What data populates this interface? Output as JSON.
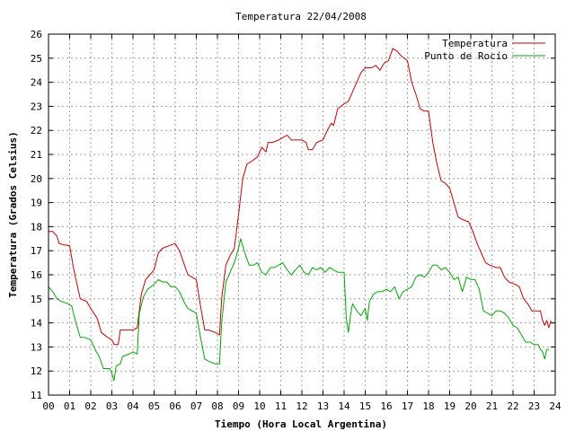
{
  "chart_data": {
    "type": "line",
    "title": "Temperatura 22/04/2008",
    "xlabel": "Tiempo (Hora Local Argentina)",
    "ylabel": "Temperatura (Grados Celsius)",
    "xlim": [
      0,
      24
    ],
    "ylim": [
      11,
      26
    ],
    "x_ticks": [
      0,
      1,
      2,
      3,
      4,
      5,
      6,
      7,
      8,
      9,
      10,
      11,
      12,
      13,
      14,
      15,
      16,
      17,
      18,
      19,
      20,
      21,
      22,
      23,
      24
    ],
    "x_tick_labels": [
      "00",
      "01",
      "02",
      "03",
      "04",
      "05",
      "06",
      "07",
      "08",
      "09",
      "10",
      "11",
      "12",
      "13",
      "14",
      "15",
      "16",
      "17",
      "18",
      "19",
      "20",
      "21",
      "22",
      "23",
      "24"
    ],
    "y_ticks": [
      11,
      12,
      13,
      14,
      15,
      16,
      17,
      18,
      19,
      20,
      21,
      22,
      23,
      24,
      25,
      26
    ],
    "grid": true,
    "legend_position": "top-right",
    "series": [
      {
        "name": "Temperatura",
        "color": "#cc0000",
        "points": [
          [
            0.0,
            17.8
          ],
          [
            0.2,
            17.8
          ],
          [
            0.4,
            17.6
          ],
          [
            0.5,
            17.3
          ],
          [
            0.7,
            17.25
          ],
          [
            1.0,
            17.2
          ],
          [
            1.2,
            16.2
          ],
          [
            1.5,
            15.0
          ],
          [
            1.8,
            14.9
          ],
          [
            2.0,
            14.6
          ],
          [
            2.3,
            14.2
          ],
          [
            2.5,
            13.6
          ],
          [
            2.8,
            13.4
          ],
          [
            3.0,
            13.3
          ],
          [
            3.1,
            13.1
          ],
          [
            3.3,
            13.1
          ],
          [
            3.4,
            13.7
          ],
          [
            3.7,
            13.7
          ],
          [
            4.0,
            13.7
          ],
          [
            4.2,
            13.8
          ],
          [
            4.4,
            15.2
          ],
          [
            4.6,
            15.8
          ],
          [
            4.8,
            16.0
          ],
          [
            5.0,
            16.2
          ],
          [
            5.2,
            16.9
          ],
          [
            5.4,
            17.1
          ],
          [
            5.7,
            17.2
          ],
          [
            6.0,
            17.3
          ],
          [
            6.2,
            17.0
          ],
          [
            6.4,
            16.5
          ],
          [
            6.6,
            16.0
          ],
          [
            6.8,
            15.9
          ],
          [
            7.0,
            15.8
          ],
          [
            7.2,
            14.7
          ],
          [
            7.4,
            13.7
          ],
          [
            7.6,
            13.7
          ],
          [
            7.9,
            13.6
          ],
          [
            8.1,
            13.5
          ],
          [
            8.2,
            15.0
          ],
          [
            8.4,
            16.4
          ],
          [
            8.6,
            16.8
          ],
          [
            8.8,
            17.1
          ],
          [
            9.0,
            18.5
          ],
          [
            9.2,
            20.0
          ],
          [
            9.4,
            20.6
          ],
          [
            9.6,
            20.7
          ],
          [
            9.9,
            20.9
          ],
          [
            10.1,
            21.3
          ],
          [
            10.3,
            21.1
          ],
          [
            10.4,
            21.5
          ],
          [
            10.6,
            21.5
          ],
          [
            10.9,
            21.6
          ],
          [
            11.1,
            21.7
          ],
          [
            11.3,
            21.8
          ],
          [
            11.5,
            21.6
          ],
          [
            11.8,
            21.6
          ],
          [
            12.0,
            21.6
          ],
          [
            12.2,
            21.5
          ],
          [
            12.3,
            21.2
          ],
          [
            12.5,
            21.2
          ],
          [
            12.7,
            21.5
          ],
          [
            13.0,
            21.6
          ],
          [
            13.2,
            22.0
          ],
          [
            13.4,
            22.3
          ],
          [
            13.5,
            22.2
          ],
          [
            13.7,
            22.9
          ],
          [
            14.0,
            23.1
          ],
          [
            14.2,
            23.2
          ],
          [
            14.4,
            23.6
          ],
          [
            14.6,
            24.0
          ],
          [
            14.8,
            24.4
          ],
          [
            15.0,
            24.6
          ],
          [
            15.3,
            24.6
          ],
          [
            15.5,
            24.7
          ],
          [
            15.7,
            24.5
          ],
          [
            15.9,
            24.8
          ],
          [
            16.1,
            24.9
          ],
          [
            16.3,
            25.4
          ],
          [
            16.5,
            25.3
          ],
          [
            16.7,
            25.1
          ],
          [
            17.0,
            24.9
          ],
          [
            17.2,
            24.0
          ],
          [
            17.4,
            23.5
          ],
          [
            17.6,
            22.9
          ],
          [
            17.8,
            22.8
          ],
          [
            18.0,
            22.8
          ],
          [
            18.2,
            21.5
          ],
          [
            18.4,
            20.6
          ],
          [
            18.6,
            19.9
          ],
          [
            18.8,
            19.8
          ],
          [
            19.0,
            19.6
          ],
          [
            19.2,
            19.0
          ],
          [
            19.4,
            18.4
          ],
          [
            19.6,
            18.3
          ],
          [
            19.9,
            18.2
          ],
          [
            20.1,
            17.8
          ],
          [
            20.3,
            17.3
          ],
          [
            20.5,
            16.9
          ],
          [
            20.7,
            16.5
          ],
          [
            20.9,
            16.4
          ],
          [
            21.2,
            16.3
          ],
          [
            21.4,
            16.3
          ],
          [
            21.6,
            15.9
          ],
          [
            21.8,
            15.7
          ],
          [
            22.1,
            15.6
          ],
          [
            22.3,
            15.5
          ],
          [
            22.5,
            15.0
          ],
          [
            22.7,
            14.8
          ],
          [
            22.9,
            14.5
          ],
          [
            23.1,
            14.5
          ],
          [
            23.3,
            14.5
          ],
          [
            23.4,
            14.1
          ],
          [
            23.5,
            13.9
          ],
          [
            23.6,
            14.1
          ],
          [
            23.7,
            13.8
          ],
          [
            23.8,
            14.1
          ]
        ]
      },
      {
        "name": "Punto de Rocío",
        "color": "#00aa00",
        "points": [
          [
            0.0,
            15.5
          ],
          [
            0.2,
            15.3
          ],
          [
            0.4,
            15.0
          ],
          [
            0.6,
            14.9
          ],
          [
            0.9,
            14.8
          ],
          [
            1.1,
            14.7
          ],
          [
            1.3,
            14.0
          ],
          [
            1.5,
            13.4
          ],
          [
            1.7,
            13.4
          ],
          [
            2.0,
            13.3
          ],
          [
            2.2,
            12.9
          ],
          [
            2.4,
            12.6
          ],
          [
            2.6,
            12.1
          ],
          [
            2.9,
            12.1
          ],
          [
            3.0,
            11.9
          ],
          [
            3.1,
            11.6
          ],
          [
            3.2,
            12.2
          ],
          [
            3.4,
            12.3
          ],
          [
            3.5,
            12.6
          ],
          [
            3.8,
            12.7
          ],
          [
            4.0,
            12.8
          ],
          [
            4.2,
            12.7
          ],
          [
            4.3,
            14.4
          ],
          [
            4.5,
            15.1
          ],
          [
            4.7,
            15.4
          ],
          [
            5.0,
            15.6
          ],
          [
            5.2,
            15.8
          ],
          [
            5.4,
            15.7
          ],
          [
            5.6,
            15.7
          ],
          [
            5.8,
            15.5
          ],
          [
            6.0,
            15.5
          ],
          [
            6.2,
            15.3
          ],
          [
            6.4,
            14.9
          ],
          [
            6.6,
            14.6
          ],
          [
            6.8,
            14.5
          ],
          [
            7.0,
            14.4
          ],
          [
            7.2,
            13.4
          ],
          [
            7.4,
            12.5
          ],
          [
            7.6,
            12.4
          ],
          [
            7.9,
            12.3
          ],
          [
            8.1,
            12.3
          ],
          [
            8.2,
            14.0
          ],
          [
            8.4,
            15.7
          ],
          [
            8.6,
            16.1
          ],
          [
            8.8,
            16.5
          ],
          [
            9.0,
            17.1
          ],
          [
            9.1,
            17.5
          ],
          [
            9.3,
            16.9
          ],
          [
            9.5,
            16.4
          ],
          [
            9.7,
            16.4
          ],
          [
            9.9,
            16.5
          ],
          [
            10.1,
            16.1
          ],
          [
            10.3,
            16.0
          ],
          [
            10.5,
            16.3
          ],
          [
            10.7,
            16.3
          ],
          [
            10.9,
            16.4
          ],
          [
            11.1,
            16.5
          ],
          [
            11.3,
            16.2
          ],
          [
            11.5,
            16.0
          ],
          [
            11.7,
            16.2
          ],
          [
            11.9,
            16.4
          ],
          [
            12.1,
            16.1
          ],
          [
            12.3,
            16.0
          ],
          [
            12.5,
            16.3
          ],
          [
            12.7,
            16.2
          ],
          [
            12.9,
            16.3
          ],
          [
            13.1,
            16.1
          ],
          [
            13.3,
            16.3
          ],
          [
            13.5,
            16.2
          ],
          [
            13.7,
            16.1
          ],
          [
            14.0,
            16.1
          ],
          [
            14.1,
            14.2
          ],
          [
            14.2,
            13.6
          ],
          [
            14.3,
            14.3
          ],
          [
            14.4,
            14.8
          ],
          [
            14.6,
            14.5
          ],
          [
            14.8,
            14.3
          ],
          [
            15.0,
            14.6
          ],
          [
            15.1,
            14.1
          ],
          [
            15.2,
            14.9
          ],
          [
            15.4,
            15.2
          ],
          [
            15.6,
            15.3
          ],
          [
            15.8,
            15.3
          ],
          [
            16.0,
            15.4
          ],
          [
            16.2,
            15.3
          ],
          [
            16.4,
            15.5
          ],
          [
            16.6,
            15.0
          ],
          [
            16.8,
            15.3
          ],
          [
            17.0,
            15.4
          ],
          [
            17.2,
            15.5
          ],
          [
            17.4,
            15.9
          ],
          [
            17.6,
            16.0
          ],
          [
            17.8,
            15.9
          ],
          [
            18.0,
            16.1
          ],
          [
            18.2,
            16.4
          ],
          [
            18.4,
            16.4
          ],
          [
            18.6,
            16.2
          ],
          [
            18.8,
            16.3
          ],
          [
            19.0,
            16.1
          ],
          [
            19.2,
            15.8
          ],
          [
            19.4,
            15.9
          ],
          [
            19.6,
            15.3
          ],
          [
            19.8,
            15.9
          ],
          [
            20.0,
            15.8
          ],
          [
            20.2,
            15.8
          ],
          [
            20.4,
            15.4
          ],
          [
            20.6,
            14.5
          ],
          [
            20.8,
            14.4
          ],
          [
            21.0,
            14.3
          ],
          [
            21.2,
            14.5
          ],
          [
            21.4,
            14.5
          ],
          [
            21.6,
            14.4
          ],
          [
            21.8,
            14.2
          ],
          [
            22.0,
            13.9
          ],
          [
            22.2,
            13.8
          ],
          [
            22.4,
            13.5
          ],
          [
            22.6,
            13.2
          ],
          [
            22.8,
            13.2
          ],
          [
            23.0,
            13.1
          ],
          [
            23.2,
            13.1
          ],
          [
            23.3,
            12.9
          ],
          [
            23.4,
            12.8
          ],
          [
            23.5,
            12.5
          ],
          [
            23.6,
            12.9
          ],
          [
            23.7,
            12.9
          ]
        ]
      }
    ]
  }
}
